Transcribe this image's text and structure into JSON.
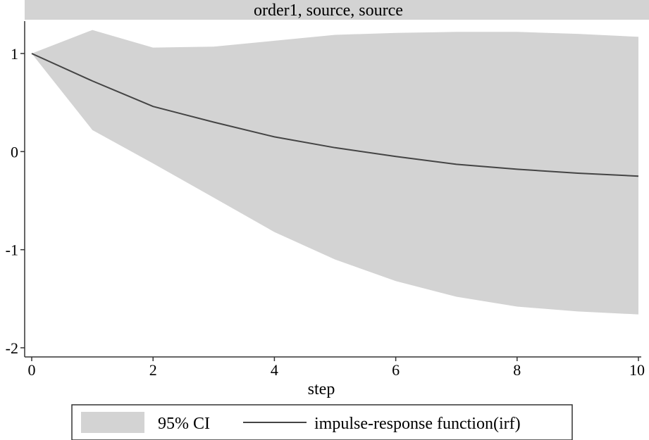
{
  "chart_data": {
    "type": "area",
    "title": "order1, source, source",
    "xlabel": "step",
    "ylabel": "",
    "xlim": [
      0,
      10
    ],
    "ylim": [
      -2,
      1.3
    ],
    "x_ticks": [
      0,
      2,
      4,
      6,
      8,
      10
    ],
    "y_ticks": [
      -2,
      -1,
      0,
      1
    ],
    "x": [
      0,
      1,
      2,
      3,
      4,
      5,
      6,
      7,
      8,
      9,
      10
    ],
    "series": [
      {
        "name": "95% CI",
        "kind": "band",
        "color": "#d3d3d3",
        "upper": [
          1.0,
          1.24,
          1.06,
          1.07,
          1.13,
          1.19,
          1.21,
          1.22,
          1.22,
          1.2,
          1.17
        ],
        "lower": [
          1.0,
          0.22,
          -0.12,
          -0.47,
          -0.82,
          -1.1,
          -1.32,
          -1.48,
          -1.58,
          -1.63,
          -1.66
        ]
      },
      {
        "name": "impulse-response function(irf)",
        "kind": "line",
        "color": "#444444",
        "values": [
          1.0,
          0.72,
          0.46,
          0.3,
          0.15,
          0.04,
          -0.05,
          -0.13,
          -0.18,
          -0.22,
          -0.25
        ]
      }
    ],
    "grid": false,
    "legend_position": "bottom"
  }
}
